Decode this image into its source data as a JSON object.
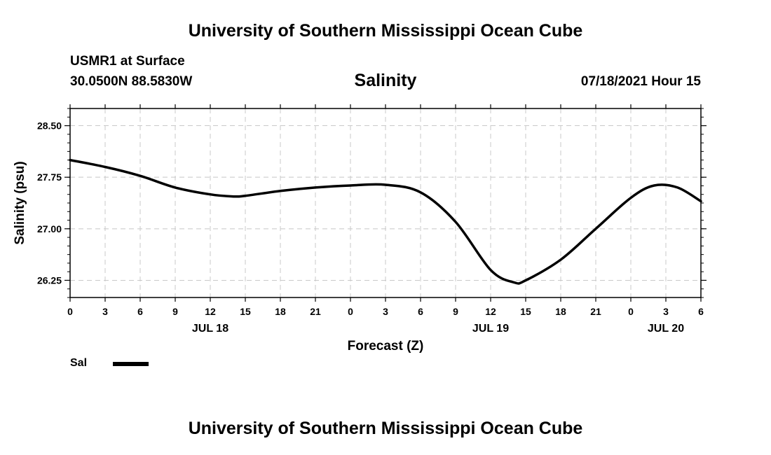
{
  "header": {
    "title": "University of Southern Mississippi Ocean Cube",
    "station": "USMR1 at Surface",
    "coords": "30.0500N  88.5830W",
    "plot_title": "Salinity",
    "datetime": "07/18/2021 Hour 15"
  },
  "footer": {
    "title": "University of Southern Mississippi Ocean Cube"
  },
  "legend": {
    "label": "Sal"
  },
  "chart_data": {
    "type": "line",
    "title": "Salinity",
    "xlabel": "Forecast (Z)",
    "ylabel": "Salinity (psu)",
    "xlim": [
      0,
      54
    ],
    "ylim": [
      26.0,
      28.75
    ],
    "grid": true,
    "legend_position": "bottom-left",
    "x_ticks": [
      {
        "hour": 0,
        "label": "0"
      },
      {
        "hour": 3,
        "label": "3"
      },
      {
        "hour": 6,
        "label": "6"
      },
      {
        "hour": 9,
        "label": "9"
      },
      {
        "hour": 12,
        "label": "12"
      },
      {
        "hour": 15,
        "label": "15"
      },
      {
        "hour": 18,
        "label": "18"
      },
      {
        "hour": 21,
        "label": "21"
      },
      {
        "hour": 24,
        "label": "0"
      },
      {
        "hour": 27,
        "label": "3"
      },
      {
        "hour": 30,
        "label": "6"
      },
      {
        "hour": 33,
        "label": "9"
      },
      {
        "hour": 36,
        "label": "12"
      },
      {
        "hour": 39,
        "label": "15"
      },
      {
        "hour": 42,
        "label": "18"
      },
      {
        "hour": 45,
        "label": "21"
      },
      {
        "hour": 48,
        "label": "0"
      },
      {
        "hour": 51,
        "label": "3"
      },
      {
        "hour": 54,
        "label": "6"
      }
    ],
    "day_labels": [
      {
        "hour": 12,
        "label": "JUL 18"
      },
      {
        "hour": 36,
        "label": "JUL 19"
      },
      {
        "hour": 51,
        "label": "JUL 20"
      }
    ],
    "y_ticks": [
      {
        "value": 26.25,
        "label": "26.25"
      },
      {
        "value": 27.0,
        "label": "27.00"
      },
      {
        "value": 27.75,
        "label": "27.75"
      },
      {
        "value": 28.5,
        "label": "28.50"
      }
    ],
    "series": [
      {
        "name": "Sal",
        "color": "#000000",
        "x": [
          0,
          3,
          6,
          9,
          12,
          14,
          15,
          18,
          21,
          24,
          27,
          30,
          33,
          36,
          38,
          39,
          42,
          45,
          48,
          50,
          52,
          54
        ],
        "values": [
          28.0,
          27.9,
          27.77,
          27.6,
          27.5,
          27.47,
          27.48,
          27.55,
          27.6,
          27.63,
          27.64,
          27.53,
          27.1,
          26.4,
          26.22,
          26.25,
          26.55,
          27.0,
          27.45,
          27.63,
          27.6,
          27.4
        ]
      }
    ]
  }
}
